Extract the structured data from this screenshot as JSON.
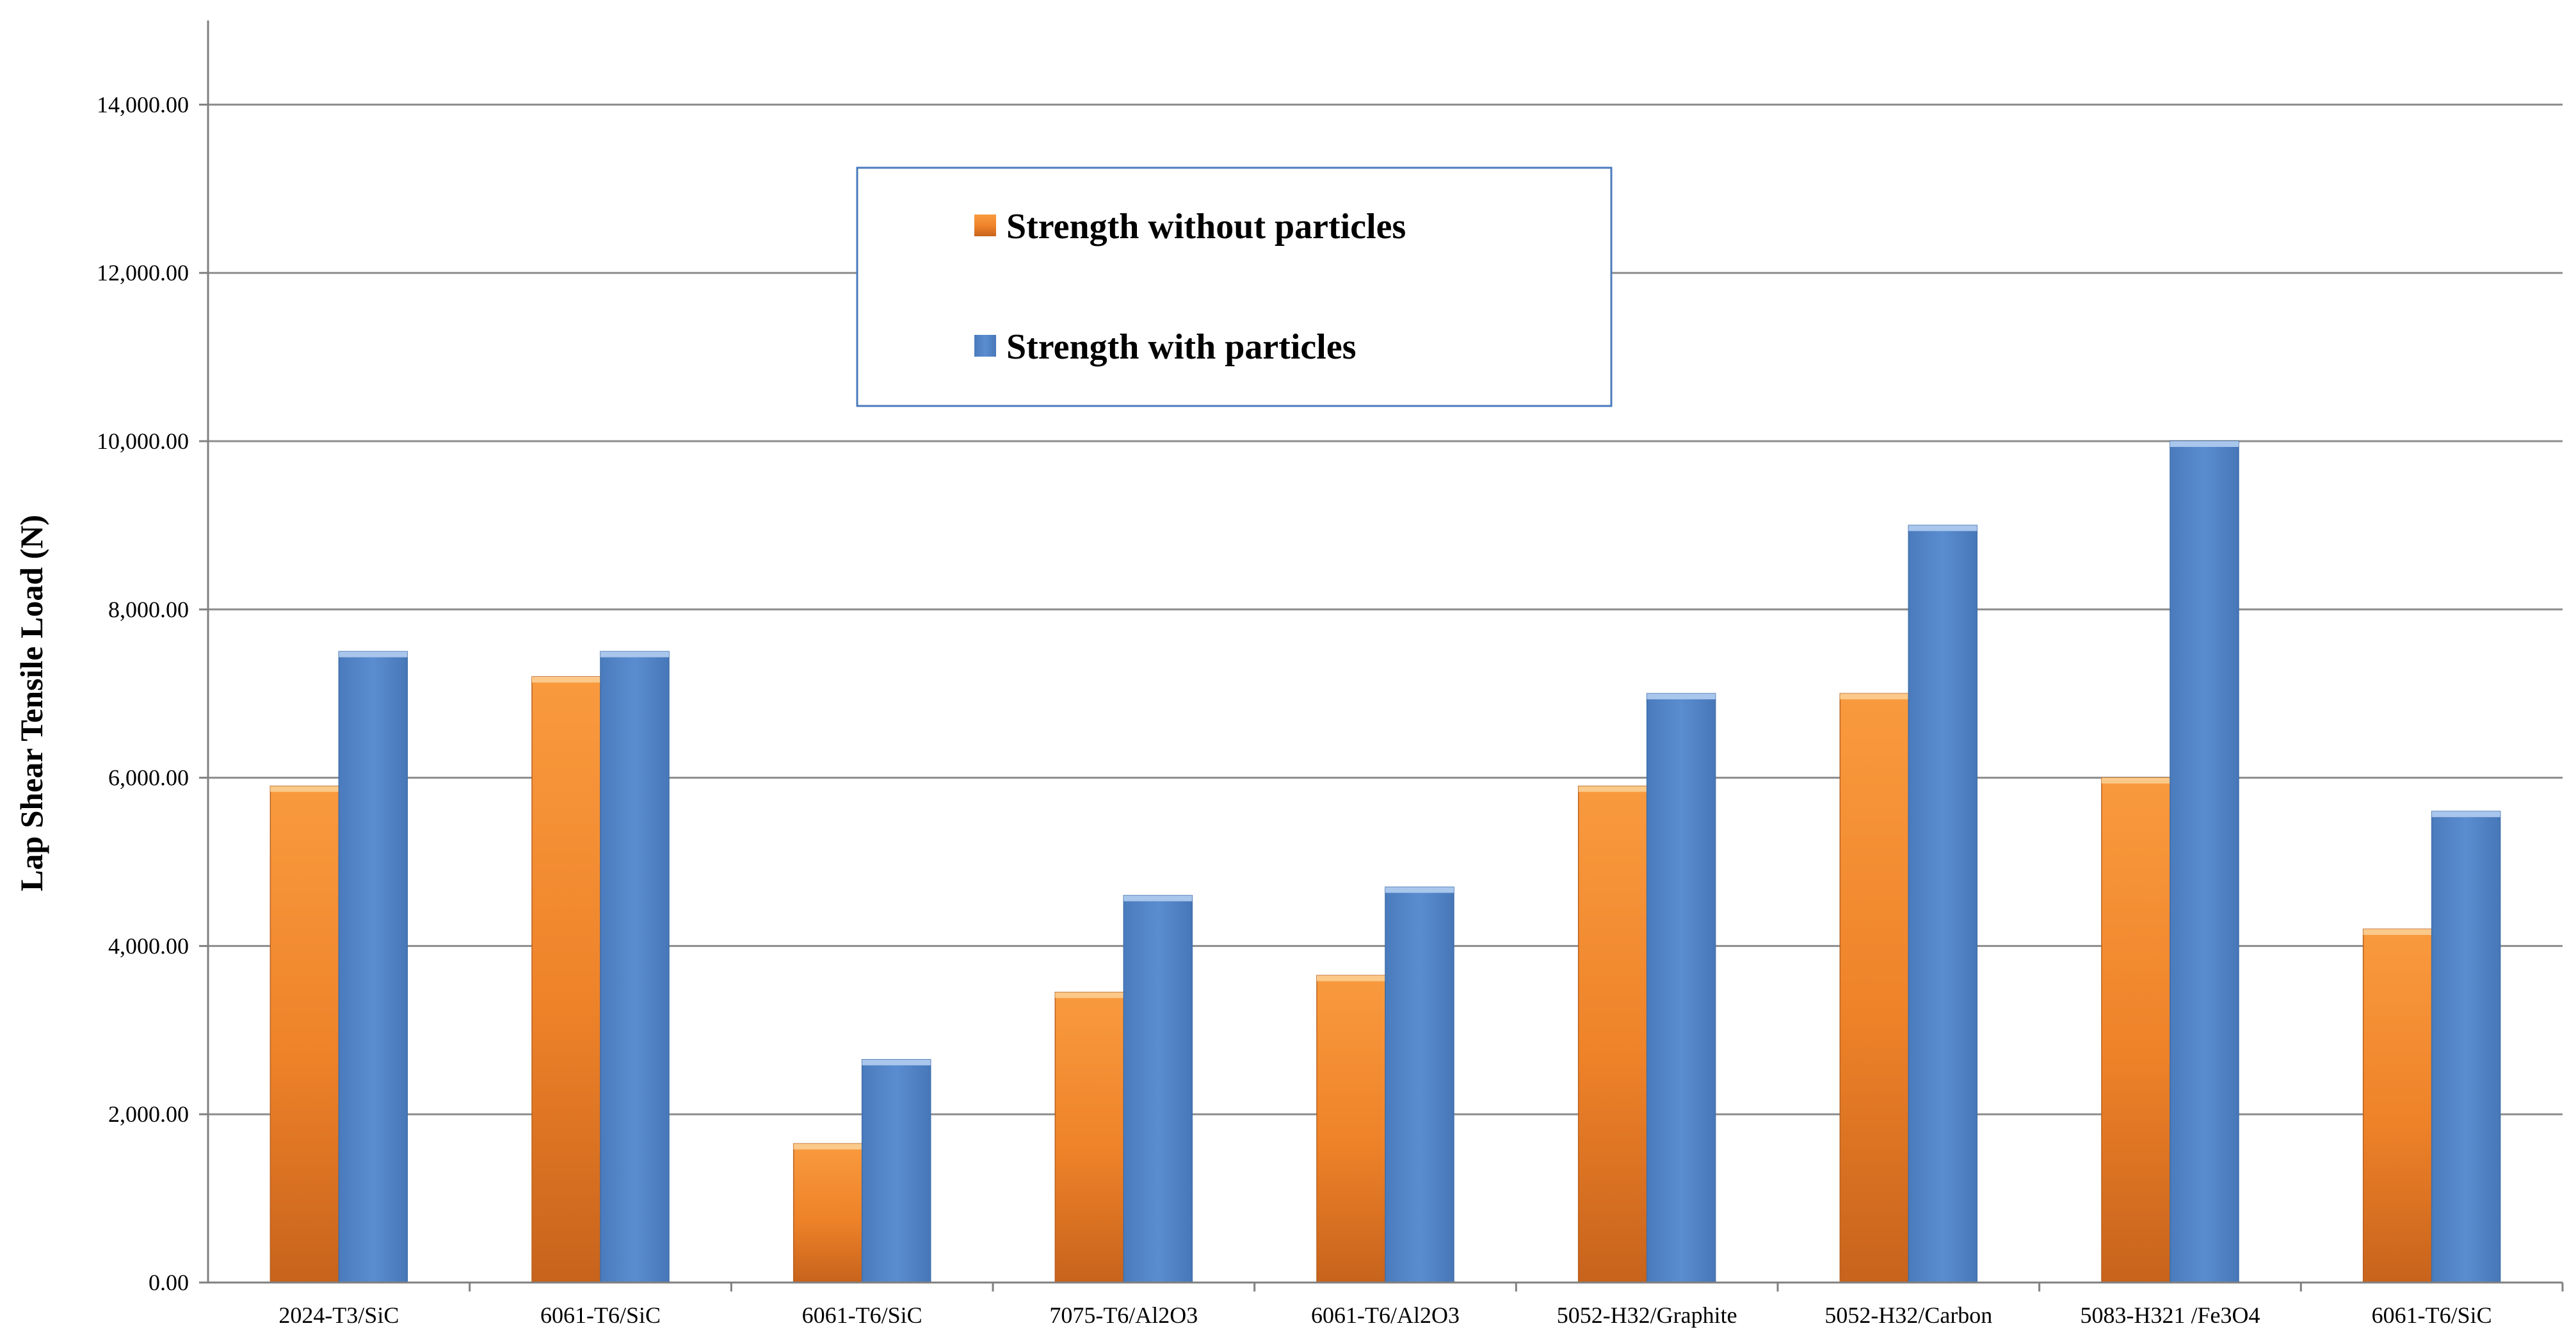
{
  "chart_data": {
    "type": "bar",
    "title": "",
    "xlabel": "",
    "ylabel": "Lap Shear Tensile Load (N)",
    "ylim": [
      0,
      15000
    ],
    "yticks": [
      0,
      2000,
      4000,
      6000,
      8000,
      10000,
      12000,
      14000
    ],
    "ytick_labels": [
      "0.00",
      "2,000.00",
      "4,000.00",
      "6,000.00",
      "8,000.00",
      "10,000.00",
      "12,000.00",
      "14,000.00"
    ],
    "grid": true,
    "legend_position": "top-center",
    "categories": [
      "2024-T3/SiC",
      "6061-T6/SiC",
      "6061-T6/SiC",
      "7075-T6/Al2O3",
      "6061-T6/Al2O3",
      "5052-H32/Graphite",
      "5052-H32/Carbon",
      "5083-H321 /Fe3O4",
      "6061-T6/SiC"
    ],
    "series": [
      {
        "name": "Strength without particles",
        "color": "#f0842a",
        "values": [
          5900,
          7200,
          1650,
          3450,
          3650,
          5900,
          7000,
          6000,
          4200
        ]
      },
      {
        "name": "Strength with particles",
        "color": "#5285c8",
        "values": [
          7500,
          7500,
          2650,
          4600,
          4700,
          7000,
          9000,
          10000,
          5600
        ]
      }
    ]
  }
}
